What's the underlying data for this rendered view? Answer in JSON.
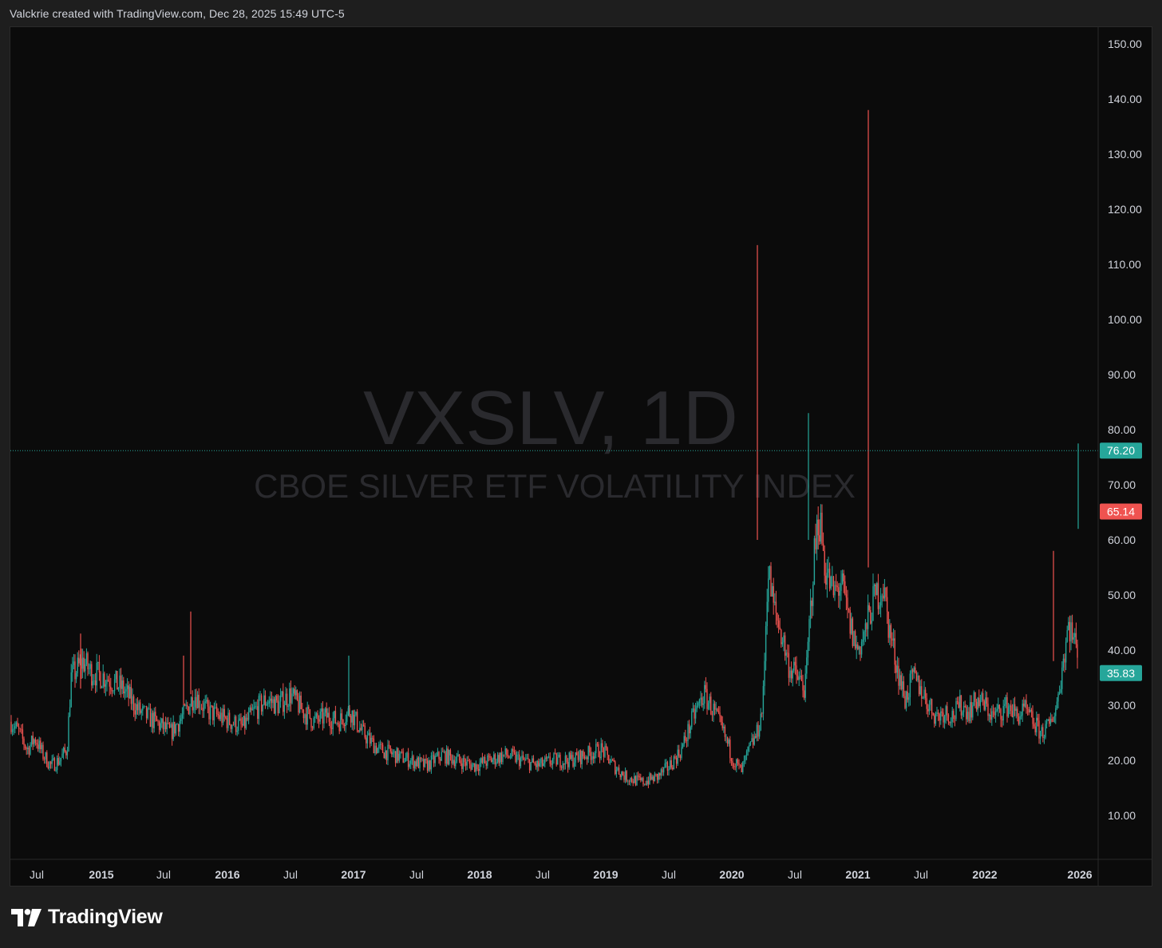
{
  "header": {
    "caption": "Valckrie created with TradingView.com, Dec 28, 2025 15:49 UTC-5"
  },
  "branding": {
    "name": "TradingView"
  },
  "watermark": {
    "symbol": "VXSLV, 1D",
    "description": "CBOE SILVER ETF VOLATILITY INDEX"
  },
  "colors": {
    "up": "#26a69a",
    "down": "#ef5350",
    "background": "#0b0b0b",
    "frame": "#1e1e1e",
    "axis_text": "#d1d4dc",
    "watermark": "#2a2a2e"
  },
  "chart_data": {
    "type": "candlestick",
    "symbol": "VXSLV",
    "interval": "1D",
    "x_axis": {
      "tick_labels": [
        "Jul",
        "2015",
        "Jul",
        "2016",
        "Jul",
        "2017",
        "Jul",
        "2018",
        "Jul",
        "2019",
        "Jul",
        "2020",
        "Jul",
        "2021",
        "Jul",
        "2022",
        "2026"
      ]
    },
    "y_axis": {
      "range": [
        0,
        155
      ],
      "ticks": [
        "150.00",
        "140.00",
        "130.00",
        "120.00",
        "110.00",
        "100.00",
        "90.00",
        "80.00",
        "70.00",
        "60.00",
        "50.00",
        "40.00",
        "30.00",
        "20.00",
        "10.00"
      ]
    },
    "price_labels": [
      {
        "value": "76.20",
        "color": "up"
      },
      {
        "value": "65.14",
        "color": "down"
      },
      {
        "value": "35.83",
        "color": "up"
      }
    ],
    "current_price_line": 76.2,
    "approx_path": [
      [
        0,
        27
      ],
      [
        10,
        25
      ],
      [
        20,
        22
      ],
      [
        30,
        24
      ],
      [
        40,
        21
      ],
      [
        50,
        19
      ],
      [
        60,
        20
      ],
      [
        70,
        22
      ],
      [
        75,
        35
      ],
      [
        90,
        38
      ],
      [
        100,
        36
      ],
      [
        120,
        35
      ],
      [
        140,
        33
      ],
      [
        160,
        29
      ],
      [
        180,
        27
      ],
      [
        200,
        25
      ],
      [
        215,
        28
      ],
      [
        230,
        32
      ],
      [
        245,
        29
      ],
      [
        260,
        28
      ],
      [
        275,
        27
      ],
      [
        290,
        26
      ],
      [
        305,
        29
      ],
      [
        320,
        31
      ],
      [
        335,
        30
      ],
      [
        350,
        32
      ],
      [
        365,
        29
      ],
      [
        380,
        27
      ],
      [
        395,
        28
      ],
      [
        410,
        27
      ],
      [
        425,
        29
      ],
      [
        440,
        25
      ],
      [
        460,
        22
      ],
      [
        480,
        21
      ],
      [
        500,
        20
      ],
      [
        520,
        19
      ],
      [
        540,
        21
      ],
      [
        560,
        20
      ],
      [
        580,
        19
      ],
      [
        600,
        20
      ],
      [
        620,
        21
      ],
      [
        640,
        20
      ],
      [
        660,
        19
      ],
      [
        680,
        20
      ],
      [
        700,
        20
      ],
      [
        720,
        21
      ],
      [
        740,
        22
      ],
      [
        755,
        19
      ],
      [
        770,
        17
      ],
      [
        790,
        16
      ],
      [
        810,
        17
      ],
      [
        825,
        19
      ],
      [
        840,
        22
      ],
      [
        855,
        28
      ],
      [
        868,
        32
      ],
      [
        880,
        29
      ],
      [
        895,
        24
      ],
      [
        905,
        20
      ],
      [
        915,
        18
      ],
      [
        925,
        22
      ],
      [
        935,
        25
      ],
      [
        942,
        30
      ],
      [
        948,
        55
      ],
      [
        955,
        48
      ],
      [
        965,
        43
      ],
      [
        975,
        37
      ],
      [
        985,
        35
      ],
      [
        995,
        33
      ],
      [
        1005,
        55
      ],
      [
        1012,
        65
      ],
      [
        1020,
        55
      ],
      [
        1030,
        50
      ],
      [
        1040,
        52
      ],
      [
        1050,
        45
      ],
      [
        1060,
        40
      ],
      [
        1070,
        43
      ],
      [
        1078,
        48
      ],
      [
        1085,
        50
      ],
      [
        1092,
        52
      ],
      [
        1100,
        44
      ],
      [
        1110,
        37
      ],
      [
        1120,
        31
      ],
      [
        1130,
        35
      ],
      [
        1140,
        33
      ],
      [
        1150,
        30
      ],
      [
        1160,
        28
      ],
      [
        1170,
        29
      ],
      [
        1180,
        28
      ],
      [
        1190,
        30
      ],
      [
        1200,
        29
      ],
      [
        1210,
        31
      ],
      [
        1220,
        30
      ],
      [
        1230,
        28
      ],
      [
        1240,
        29
      ],
      [
        1250,
        30
      ],
      [
        1260,
        28
      ],
      [
        1270,
        29
      ],
      [
        1280,
        27
      ],
      [
        1290,
        25
      ],
      [
        1300,
        26
      ],
      [
        1310,
        30
      ],
      [
        1318,
        38
      ],
      [
        1325,
        45
      ],
      [
        1335,
        40
      ],
      [
        1345,
        48
      ],
      [
        1351,
        60
      ]
    ],
    "spikes": [
      {
        "x": 949,
        "high": 113.5,
        "low": 60,
        "color": "down"
      },
      {
        "x": 1088,
        "high": 138,
        "low": 55,
        "color": "down"
      },
      {
        "x": 1013,
        "high": 83,
        "low": 60,
        "color": "up"
      },
      {
        "x": 239,
        "high": 47,
        "low": 32,
        "color": "down"
      },
      {
        "x": 230,
        "high": 39,
        "low": 30,
        "color": "down"
      },
      {
        "x": 101,
        "high": 43,
        "low": 33,
        "color": "down"
      },
      {
        "x": 437,
        "high": 39,
        "low": 28,
        "color": "up"
      },
      {
        "x": 1351,
        "high": 77.5,
        "low": 62,
        "color": "up"
      },
      {
        "x": 1320,
        "high": 58,
        "low": 38,
        "color": "down"
      }
    ]
  }
}
